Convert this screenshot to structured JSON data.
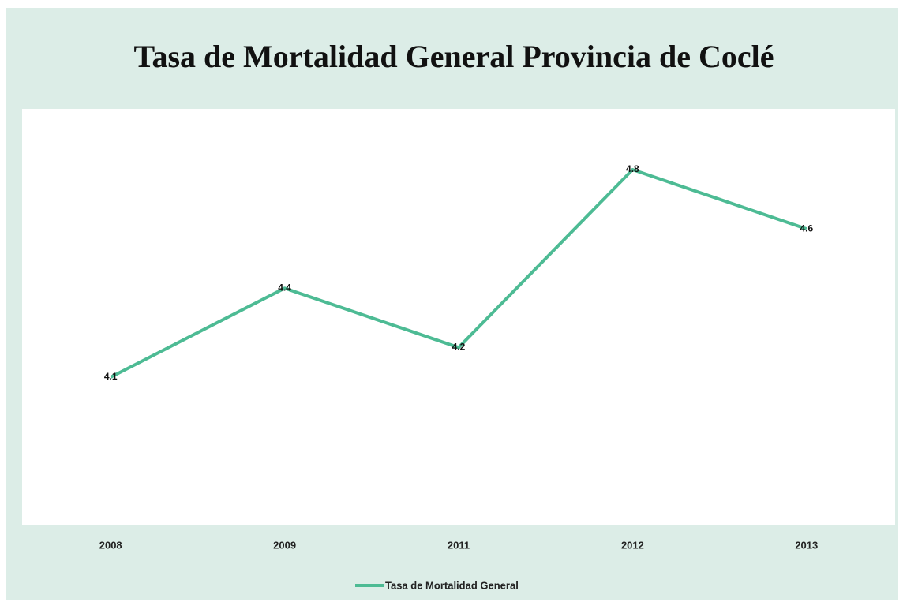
{
  "chart_data": {
    "type": "line",
    "title": "Tasa de Mortalidad General Provincia de Coclé",
    "categories": [
      "2008",
      "2009",
      "2011",
      "2012",
      "2013"
    ],
    "series": [
      {
        "name": "Tasa de Mortalidad General",
        "color": "#4dbb94",
        "values": [
          4.1,
          4.4,
          4.2,
          4.8,
          4.6
        ]
      }
    ]
  }
}
